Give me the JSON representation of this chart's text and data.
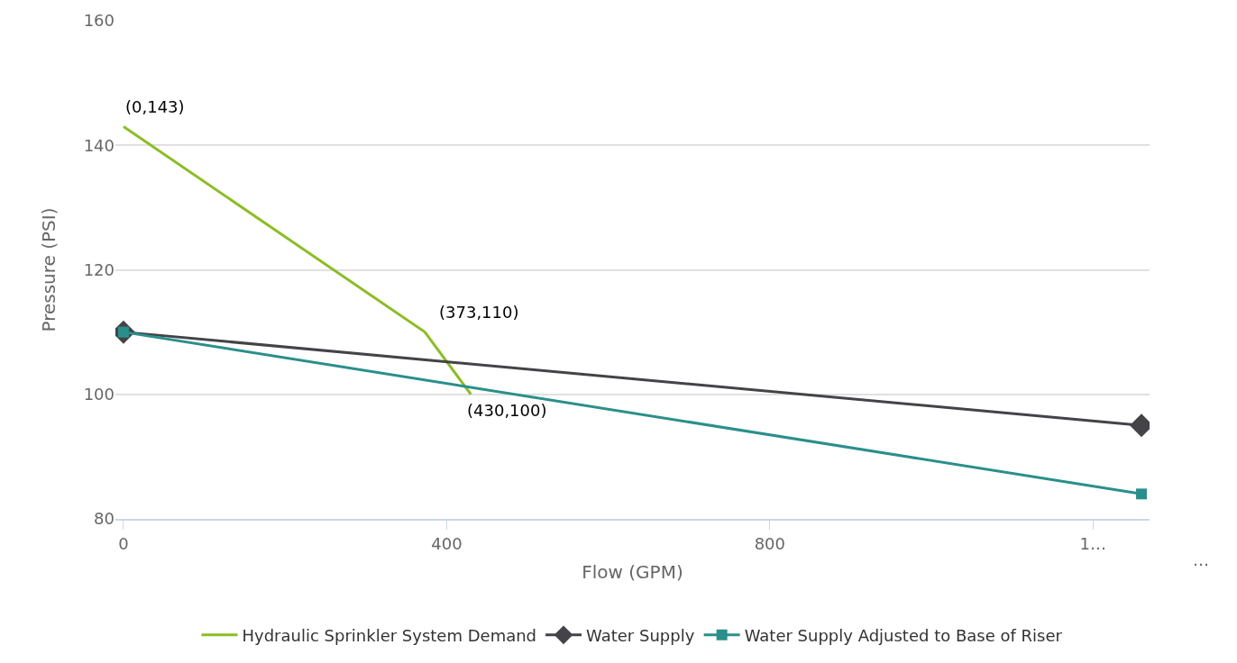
{
  "chart_data": {
    "type": "line",
    "xlabel": "Flow (GPM)",
    "ylabel": "Pressure (PSI)",
    "xlim": [
      -10,
      1270
    ],
    "xticks": [
      0,
      400,
      800,
      {
        "value": 1200,
        "label": "1…"
      }
    ],
    "ylim": [
      80,
      160
    ],
    "yticks": [
      80,
      100,
      120,
      140,
      160
    ],
    "grid": "y",
    "legend": "bottom",
    "series": [
      {
        "name": "Hydraulic Sprinkler System Demand",
        "color": "#8cbd26",
        "x": [
          0,
          373,
          430
        ],
        "values": [
          143,
          110,
          100
        ],
        "marker": "none"
      },
      {
        "name": "Water Supply",
        "color": "#434348",
        "x": [
          0,
          1260
        ],
        "values": [
          110,
          95
        ],
        "marker": "diamond"
      },
      {
        "name": "Water Supply Adjusted to Base of Riser",
        "color": "#2a8f8c",
        "x": [
          0,
          1260
        ],
        "values": [
          110,
          84
        ],
        "marker": "square"
      }
    ],
    "annotations": [
      {
        "text": "(0,143)",
        "x": 0,
        "y": 143
      },
      {
        "text": "(373,110)",
        "x": 373,
        "y": 110
      },
      {
        "text": "(430,100)",
        "x": 430,
        "y": 100
      },
      "…"
    ]
  }
}
